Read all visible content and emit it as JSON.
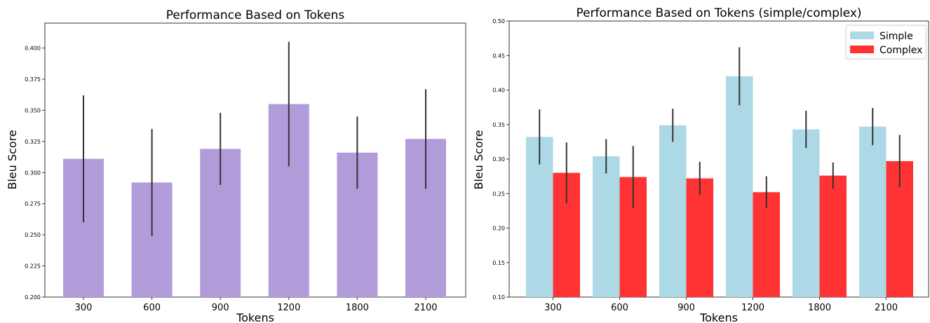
{
  "chart_data": [
    {
      "type": "bar",
      "title": "Performance Based on Tokens",
      "xlabel": "Tokens",
      "ylabel": "Bleu Score",
      "categories": [
        "300",
        "600",
        "900",
        "1200",
        "1800",
        "2100"
      ],
      "ylim": [
        0.2,
        0.42
      ],
      "yticks": [
        0.2,
        0.225,
        0.25,
        0.275,
        0.3,
        0.325,
        0.35,
        0.375,
        0.4
      ],
      "ytick_labels": [
        "0.200",
        "0.225",
        "0.250",
        "0.275",
        "0.300",
        "0.325",
        "0.350",
        "0.375",
        "0.400"
      ],
      "grid": false,
      "series": [
        {
          "name": "",
          "color": "#b19cd9",
          "values": [
            0.311,
            0.292,
            0.319,
            0.355,
            0.316,
            0.327
          ],
          "errors": [
            0.051,
            0.043,
            0.029,
            0.05,
            0.029,
            0.04
          ]
        }
      ]
    },
    {
      "type": "bar",
      "title": "Performance Based on Tokens (simple/complex)",
      "xlabel": "Tokens",
      "ylabel": "Bleu Score",
      "categories": [
        "300",
        "600",
        "900",
        "1200",
        "1800",
        "2100"
      ],
      "ylim": [
        0.1,
        0.5
      ],
      "yticks": [
        0.1,
        0.15,
        0.2,
        0.25,
        0.3,
        0.35,
        0.4,
        0.45,
        0.5
      ],
      "ytick_labels": [
        "0.10",
        "0.15",
        "0.20",
        "0.25",
        "0.30",
        "0.35",
        "0.40",
        "0.45",
        "0.50"
      ],
      "legend_position": "top-right",
      "grid": false,
      "series": [
        {
          "name": "Simple",
          "color": "#add8e6",
          "values": [
            0.332,
            0.304,
            0.349,
            0.42,
            0.343,
            0.347
          ],
          "errors": [
            0.04,
            0.025,
            0.024,
            0.042,
            0.027,
            0.027
          ]
        },
        {
          "name": "Complex",
          "color": "#ff3333",
          "values": [
            0.28,
            0.274,
            0.272,
            0.252,
            0.276,
            0.297
          ],
          "errors": [
            0.044,
            0.045,
            0.024,
            0.023,
            0.019,
            0.038
          ]
        }
      ]
    }
  ]
}
